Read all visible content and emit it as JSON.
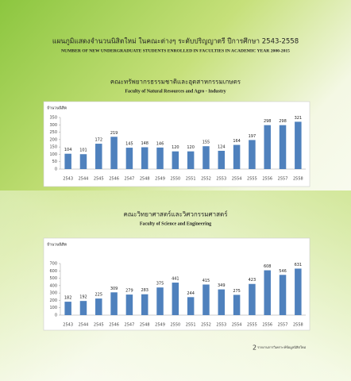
{
  "header": {
    "title_th": "แผนภูมิแสดงจำนวนนิสิตใหม่ ในคณะต่างๆ ระดับปริญญาตรี ปีการศึกษา 2543-2558",
    "title_en": "NUMBER OF NEW UNDERGRADUATE STUDENTS ENROLLED IN FACULTIES IN ACADEMIC YEAR 2000-2015"
  },
  "chart_data": [
    {
      "type": "bar",
      "title": "คณะทรัพยากรธรรมชาติและอุตสาหกรรมเกษตร",
      "subtitle": "Faculty of Natural Resources and Agro - Industry",
      "y_label": "จำนวนนิสิต",
      "categories": [
        "2543",
        "2544",
        "2545",
        "2546",
        "2547",
        "2548",
        "2549",
        "2550",
        "2551",
        "2552",
        "2553",
        "2554",
        "2555",
        "2556",
        "2557",
        "2558"
      ],
      "values": [
        104,
        101,
        172,
        219,
        145,
        148,
        146,
        120,
        120,
        155,
        124,
        164,
        197,
        298,
        298,
        321
      ],
      "color": "#4f81bd",
      "ylim": [
        0,
        350
      ],
      "yticks": [
        0,
        50,
        100,
        150,
        200,
        250,
        300,
        350
      ],
      "grid": false
    },
    {
      "type": "bar",
      "title": "คณะวิทยาศาสตร์และวิศวกรรมศาสตร์",
      "subtitle": "Faculty of Science and Engineering",
      "y_label": "จำนวนนิสิต",
      "categories": [
        "2543",
        "2544",
        "2545",
        "2546",
        "2547",
        "2548",
        "2549",
        "2550",
        "2551",
        "2552",
        "2553",
        "2554",
        "2555",
        "2556",
        "2557",
        "2558"
      ],
      "values": [
        182,
        192,
        225,
        309,
        279,
        283,
        375,
        441,
        244,
        415,
        349,
        275,
        423,
        608,
        546,
        631
      ],
      "color": "#4f81bd",
      "ylim": [
        0,
        700
      ],
      "yticks": [
        0,
        100,
        200,
        300,
        400,
        500,
        600,
        700
      ],
      "grid": false
    }
  ],
  "footer": {
    "page": "2",
    "text": "รายงานการวิเคราะห์ข้อมูลนิสิตใหม่"
  }
}
